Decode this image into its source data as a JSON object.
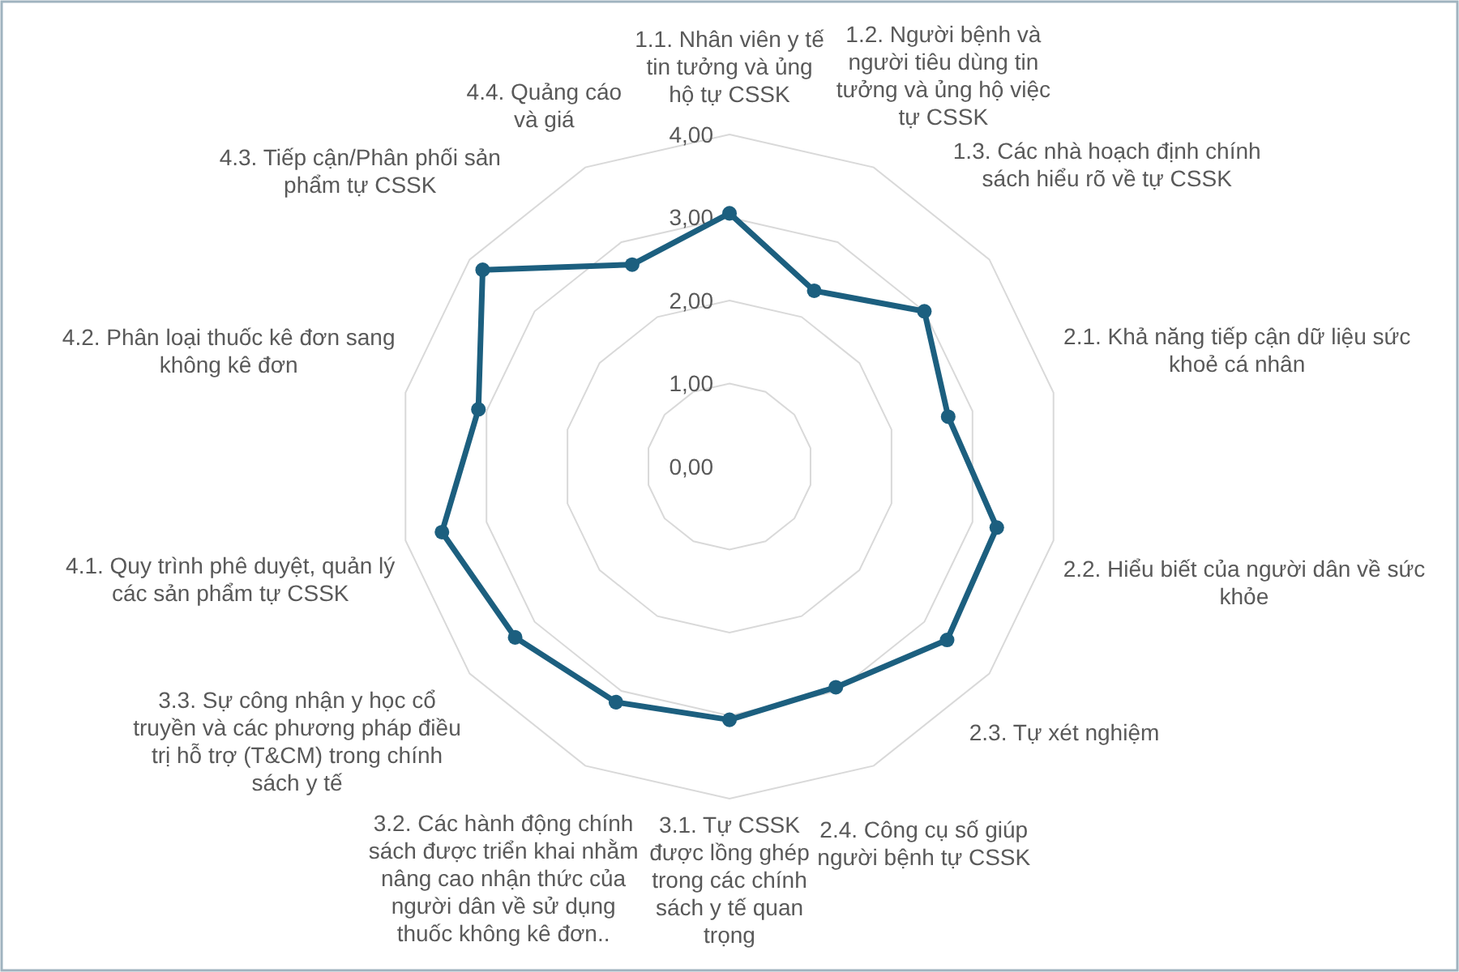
{
  "chart_data": {
    "type": "radar",
    "categories": [
      "1.1. Nhân viên y tế tin tưởng và ủng hộ tự CSSK",
      "1.2. Người bệnh và người tiêu dùng tin tưởng và ủng hộ việc tự CSSK",
      "1.3. Các nhà hoạch định chính sách hiểu rõ về tự CSSK",
      "2.1. Khả năng tiếp cận dữ liệu sức khoẻ cá nhân",
      "2.2. Hiểu biết của người dân về sức khỏe",
      "2.3. Tự xét nghiệm",
      "2.4. Công cụ số giúp người bệnh tự CSSK",
      "3.1. Tự CSSK được lồng ghép trong các chính sách y tế quan trọng",
      "3.2. Các hành động chính sách được triển khai nhằm nâng cao nhận thức của người dân về sử dụng thuốc không kê đơn..",
      "3.3. Sự công nhận y học cổ truyền và các phương pháp điều trị hỗ trợ (T&CM) trong chính sách y tế",
      "4.1. Quy trình phê duyệt, quản lý các sản phẩm tự CSSK",
      "4.2. Phân loại thuốc kê đơn sang không kê đơn",
      "4.3. Tiếp cận/Phân phối sản phẩm tự CSSK",
      "4.4. Quảng cáo và giá"
    ],
    "series": [
      {
        "color": "#1c5f7f",
        "values": [
          3.05,
          2.35,
          3.0,
          2.7,
          3.3,
          3.35,
          2.95,
          3.05,
          3.15,
          3.3,
          3.55,
          3.1,
          3.8,
          2.7
        ]
      }
    ],
    "ylim": [
      0,
      4
    ],
    "yticks": [
      {
        "value": 0,
        "label": "0,00"
      },
      {
        "value": 1,
        "label": "1,00"
      },
      {
        "value": 2,
        "label": "2,00"
      },
      {
        "value": 3,
        "label": "3,00"
      },
      {
        "value": 4,
        "label": "4,00"
      }
    ],
    "grid": true,
    "marker": "circle"
  }
}
